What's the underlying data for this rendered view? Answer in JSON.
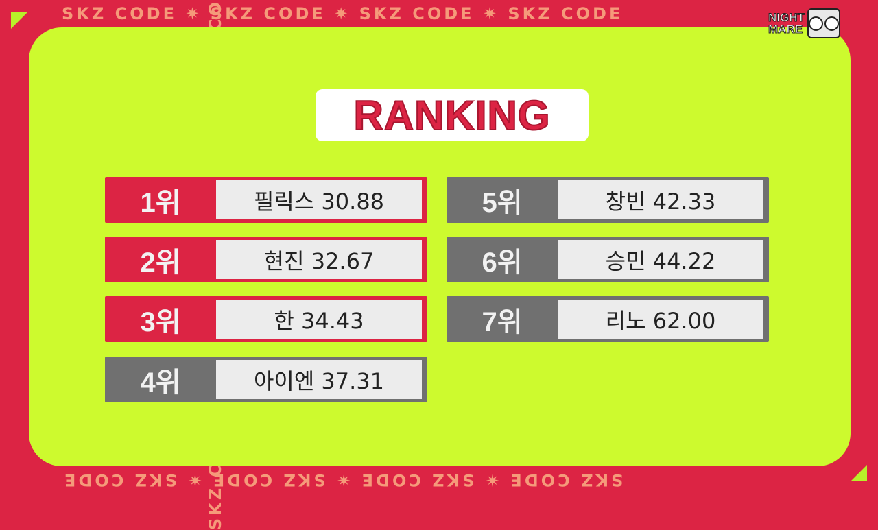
{
  "frame": {
    "strip_text": "SKZ CODE ✷ SKZ CODE ✷ SKZ CODE ✷ SKZ CODE",
    "accent": "#dc2444",
    "panel": "#cdfa2e"
  },
  "logo": {
    "line1": "NIGHT",
    "line2": "MARE"
  },
  "title": "RANKING",
  "rankings": [
    {
      "rank": "1위",
      "name_score": "필릭스 30.88",
      "style": "red"
    },
    {
      "rank": "2위",
      "name_score": "현진 32.67",
      "style": "red"
    },
    {
      "rank": "3위",
      "name_score": "한 34.43",
      "style": "red"
    },
    {
      "rank": "4위",
      "name_score": "아이엔 37.31",
      "style": "gray"
    },
    {
      "rank": "5위",
      "name_score": "창빈 42.33",
      "style": "gray"
    },
    {
      "rank": "6위",
      "name_score": "승민 44.22",
      "style": "gray"
    },
    {
      "rank": "7위",
      "name_score": "리노 62.00",
      "style": "gray"
    }
  ]
}
